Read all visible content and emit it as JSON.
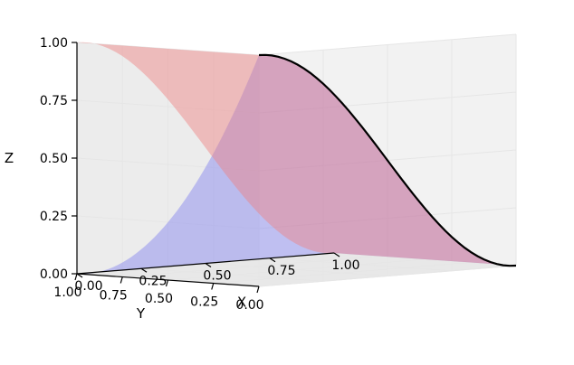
{
  "chart_data": {
    "type": "surface3d",
    "title": "",
    "xlabel": "X",
    "ylabel": "Y",
    "zlabel": "Z",
    "xlim": [
      0,
      1
    ],
    "ylim": [
      0,
      1
    ],
    "zlim": [
      0,
      1
    ],
    "xticks": [
      "0.00",
      "0.25",
      "0.50",
      "0.75",
      "1.00"
    ],
    "yticks": [
      "0.00",
      "0.25",
      "0.50",
      "0.75",
      "1.00"
    ],
    "zticks": [
      "0.00",
      "0.25",
      "0.50",
      "0.75",
      "1.00"
    ],
    "grid": true,
    "series": [
      {
        "kind": "surface",
        "color": "#f08080",
        "opacity": 0.45,
        "function": "z = (1 + cos(pi*x)) / 2",
        "points": [
          [
            0,
            0,
            1
          ],
          [
            0,
            1,
            1
          ],
          [
            1,
            1,
            0
          ],
          [
            1,
            0,
            0
          ]
        ]
      },
      {
        "kind": "surface",
        "color": "#8080f0",
        "opacity": 0.45,
        "function": "z = (1 + cos(pi*x)) / 2 * (1 - y)^2",
        "points": [
          [
            0,
            0,
            1
          ],
          [
            1,
            0,
            0
          ],
          [
            1,
            1,
            0
          ],
          [
            0,
            1,
            0
          ]
        ]
      },
      {
        "kind": "curve",
        "color": "#000000",
        "x": [
          0,
          0.1,
          0.2,
          0.3,
          0.4,
          0.5,
          0.6,
          0.7,
          0.8,
          0.9,
          1.0
        ],
        "y": [
          0,
          0,
          0,
          0,
          0,
          0,
          0,
          0,
          0,
          0,
          0
        ],
        "z": [
          1,
          0.976,
          0.905,
          0.794,
          0.655,
          0.5,
          0.345,
          0.206,
          0.095,
          0.024,
          0
        ]
      }
    ]
  }
}
